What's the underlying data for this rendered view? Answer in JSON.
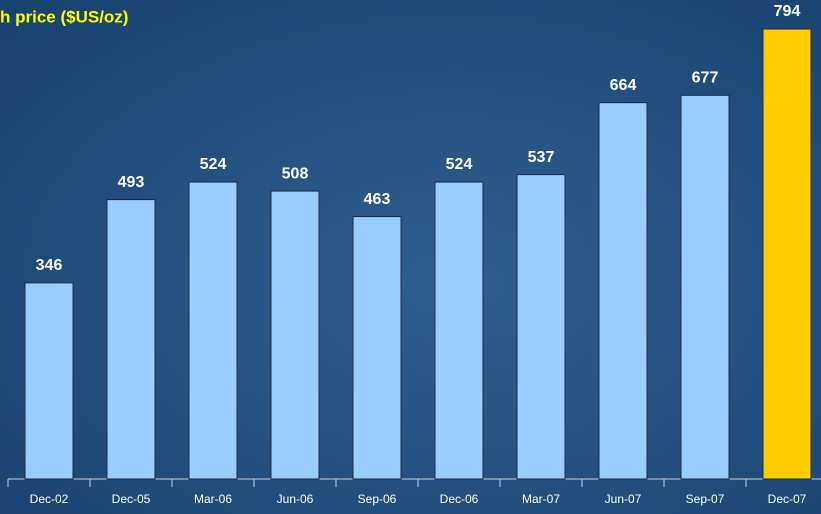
{
  "chart_data": {
    "type": "bar",
    "title": "h price ($US/oz)",
    "categories": [
      "Dec-02",
      "Dec-05",
      "Mar-06",
      "Jun-06",
      "Sep-06",
      "Dec-06",
      "Mar-07",
      "Jun-07",
      "Sep-07",
      "Dec-07"
    ],
    "values": [
      346,
      493,
      524,
      508,
      463,
      524,
      537,
      664,
      677,
      794
    ],
    "colors": [
      "#99ccff",
      "#99ccff",
      "#99ccff",
      "#99ccff",
      "#99ccff",
      "#99ccff",
      "#99ccff",
      "#99ccff",
      "#99ccff",
      "#ffcc00"
    ]
  }
}
